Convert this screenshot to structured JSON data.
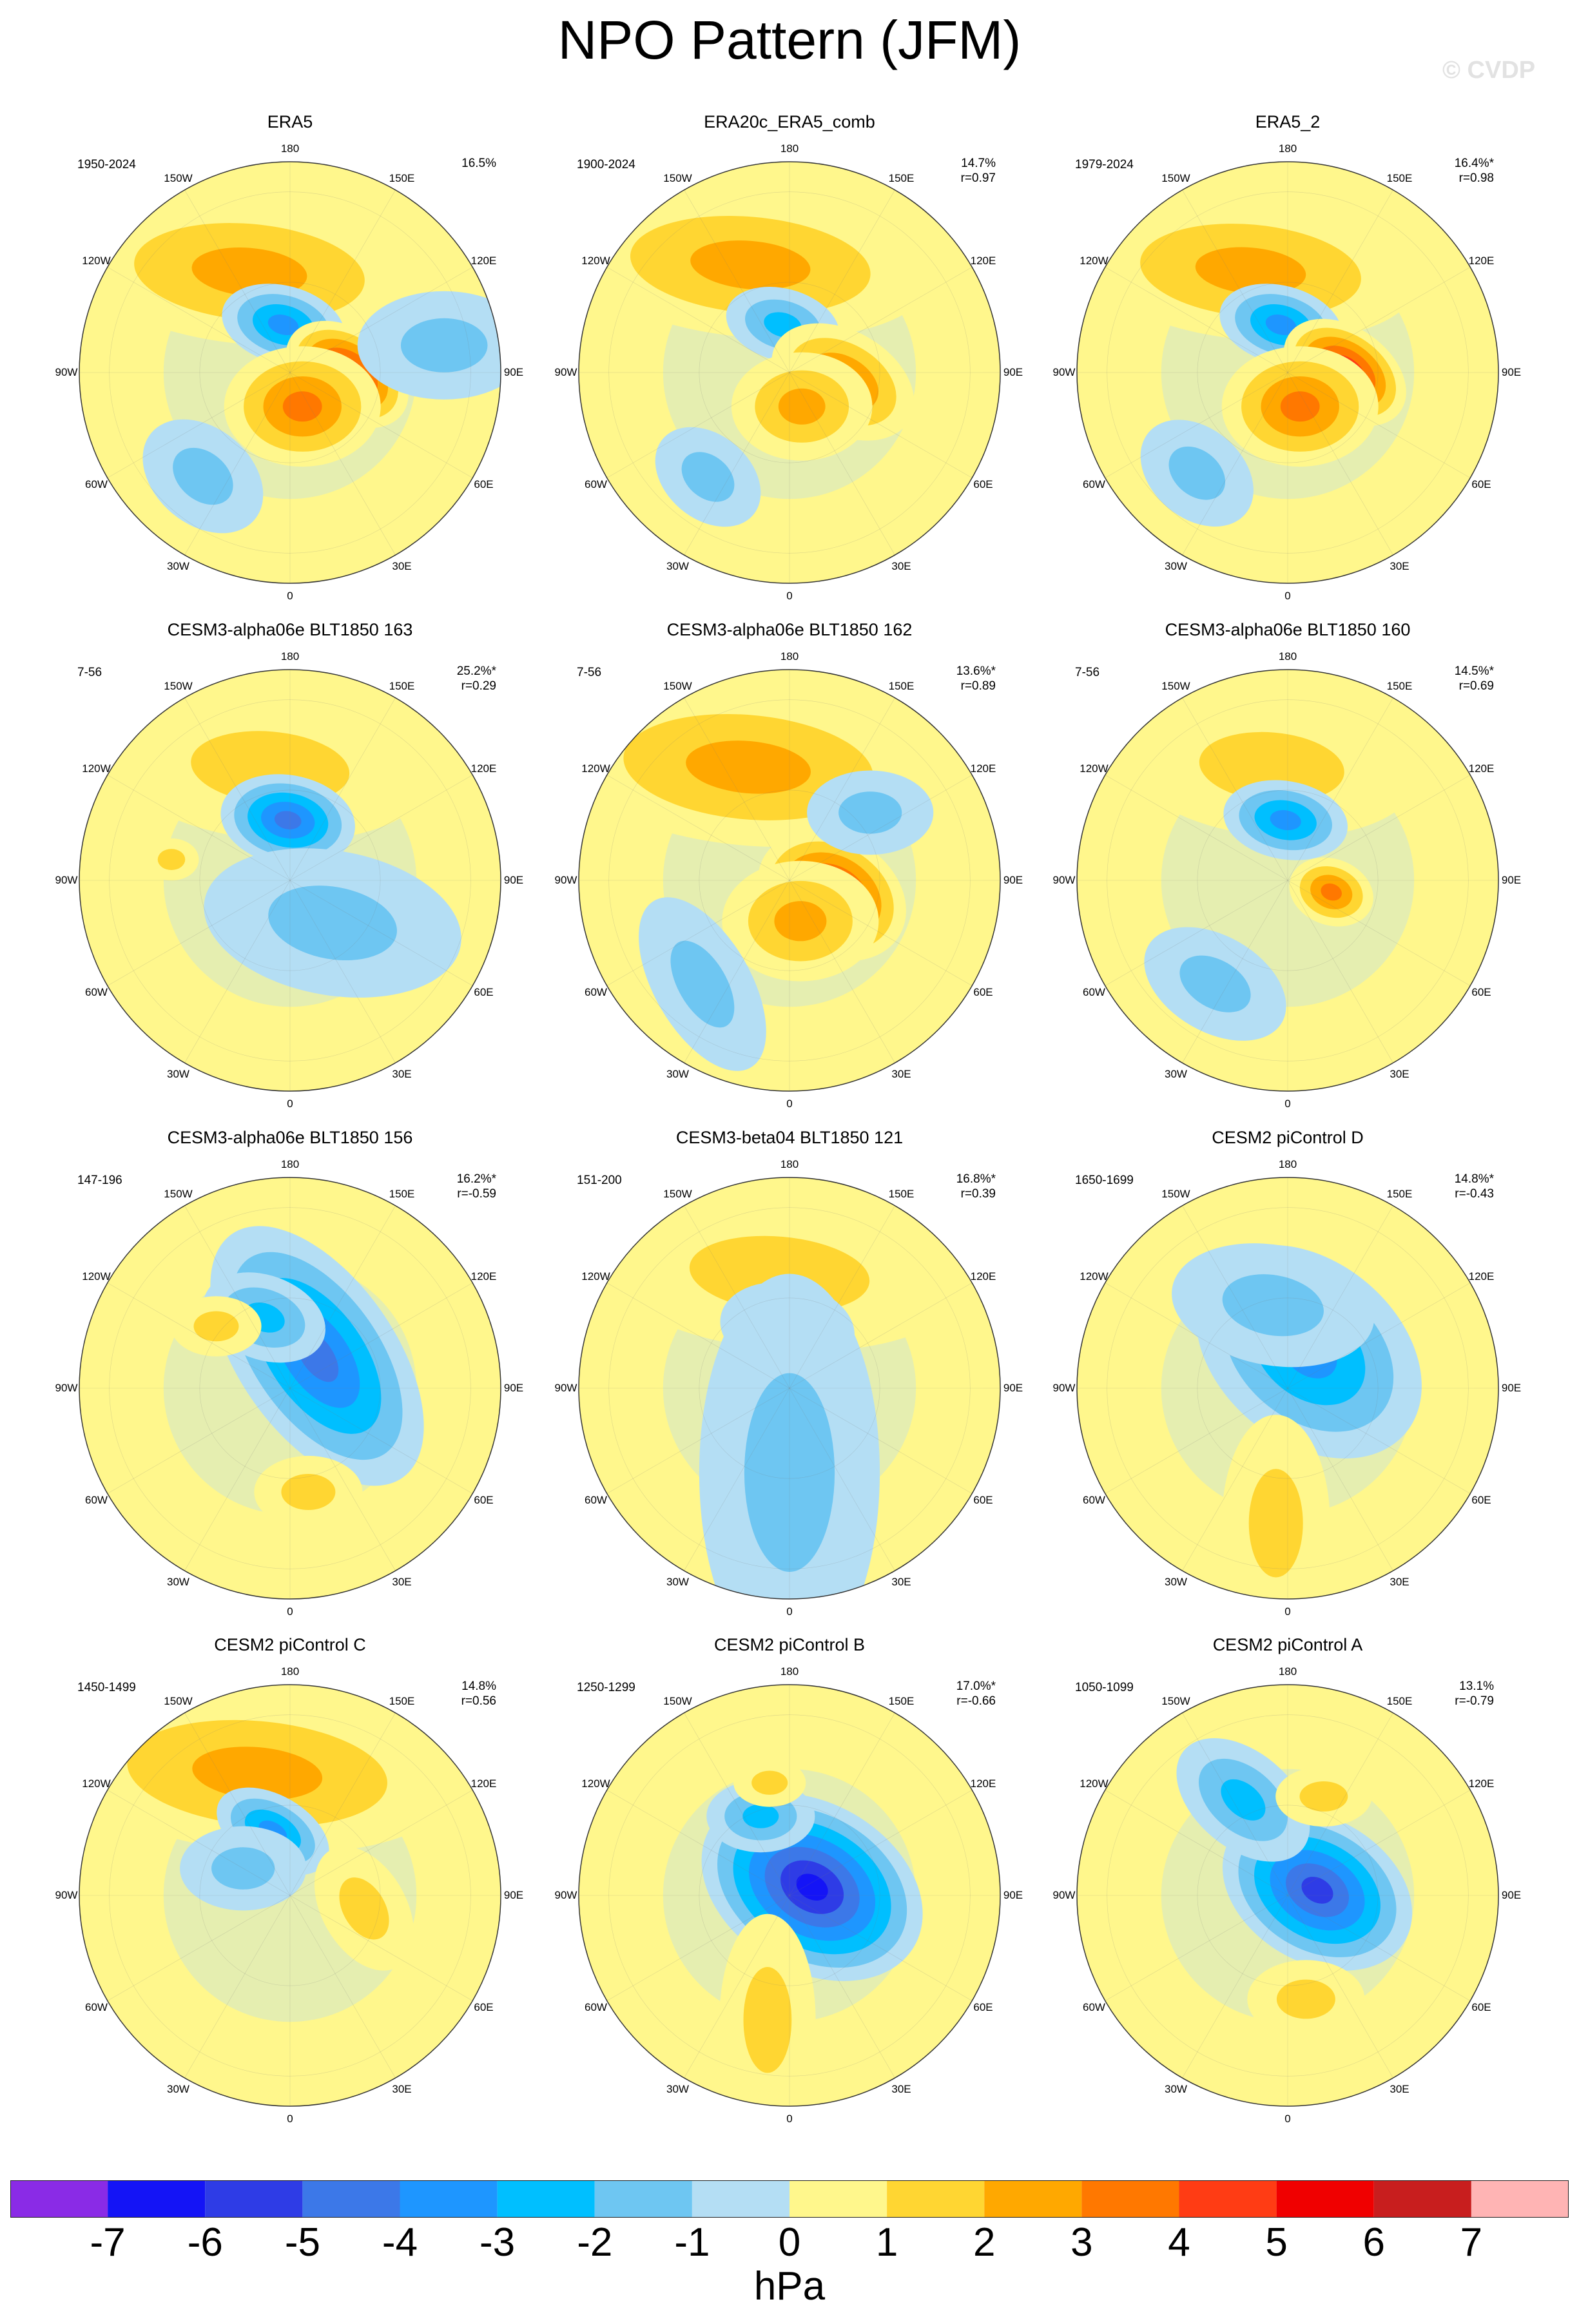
{
  "title": "NPO Pattern (JFM)",
  "watermark": "© CVDP",
  "longitude_labels": [
    "180",
    "150E",
    "120E",
    "90E",
    "60E",
    "30E",
    "0",
    "30W",
    "60W",
    "90W",
    "120W",
    "150W"
  ],
  "panels": [
    {
      "title": "ERA5",
      "years": "1950-2024",
      "pct": "16.5%",
      "r": "",
      "features": [
        {
          "lat": 54,
          "lon": -158,
          "val": 2.5,
          "rad": 24,
          "ax": 2.4,
          "ang": 5
        },
        {
          "lat": 74,
          "lon": -172,
          "val": -3.4,
          "rad": 13,
          "ax": 1.6,
          "ang": 15
        },
        {
          "lat": 71,
          "lon": 88,
          "val": 5.2,
          "rad": 15,
          "ax": 1.5,
          "ang": 35
        },
        {
          "lat": 78,
          "lon": 20,
          "val": 3.5,
          "rad": 20,
          "ax": 1.3,
          "ang": 0
        },
        {
          "lat": 45,
          "lon": -40,
          "val": -2.0,
          "rad": 16,
          "ax": 1.4,
          "ang": 40
        },
        {
          "lat": 38,
          "lon": 100,
          "val": -1.2,
          "rad": 18,
          "ax": 1.6,
          "ang": 0
        }
      ]
    },
    {
      "title": "ERA20c_ERA5_comb",
      "years": "1900-2024",
      "pct": "14.7%",
      "r": "r=0.97",
      "features": [
        {
          "lat": 52,
          "lon": -160,
          "val": 2.4,
          "rad": 24,
          "ax": 2.5,
          "ang": 5
        },
        {
          "lat": 74,
          "lon": -172,
          "val": -2.9,
          "rad": 12,
          "ax": 1.6,
          "ang": 15
        },
        {
          "lat": 72,
          "lon": 80,
          "val": 3.3,
          "rad": 17,
          "ax": 1.5,
          "ang": 30
        },
        {
          "lat": 78,
          "lon": 20,
          "val": 2.4,
          "rad": 18,
          "ax": 1.3,
          "ang": 0
        },
        {
          "lat": 46,
          "lon": -38,
          "val": -1.8,
          "rad": 14,
          "ax": 1.4,
          "ang": 40
        }
      ]
    },
    {
      "title": "ERA5_2",
      "years": "1979-2024",
      "pct": "16.4%*",
      "r": "r=0.98",
      "features": [
        {
          "lat": 54,
          "lon": -160,
          "val": 2.4,
          "rad": 23,
          "ax": 2.4,
          "ang": 5
        },
        {
          "lat": 74,
          "lon": -172,
          "val": -3.4,
          "rad": 13,
          "ax": 1.6,
          "ang": 15
        },
        {
          "lat": 71,
          "lon": 90,
          "val": 5.5,
          "rad": 15,
          "ax": 1.5,
          "ang": 35
        },
        {
          "lat": 78,
          "lon": 20,
          "val": 3.2,
          "rad": 20,
          "ax": 1.3,
          "ang": 0
        },
        {
          "lat": 45,
          "lon": -42,
          "val": -2.0,
          "rad": 15,
          "ax": 1.4,
          "ang": 40
        }
      ]
    },
    {
      "title": "CESM3-alpha06e BLT1850 163",
      "years": "7-56",
      "pct": "25.2%*",
      "r": "r=0.29",
      "features": [
        {
          "lat": 52,
          "lon": -170,
          "val": 1.9,
          "rad": 24,
          "ax": 2.2,
          "ang": 5
        },
        {
          "lat": 70,
          "lon": -178,
          "val": -5.0,
          "rad": 15,
          "ax": 1.5,
          "ang": 10
        },
        {
          "lat": 70,
          "lon": 45,
          "val": -1.4,
          "rad": 24,
          "ax": 1.8,
          "ang": 10
        },
        {
          "lat": 50,
          "lon": -100,
          "val": 1.2,
          "rad": 7,
          "ax": 1.3,
          "ang": 0
        }
      ]
    },
    {
      "title": "CESM3-alpha06e BLT1850 162",
      "years": "7-56",
      "pct": "13.6%*",
      "r": "r=0.89",
      "features": [
        {
          "lat": 50,
          "lon": -160,
          "val": 2.4,
          "rad": 26,
          "ax": 2.4,
          "ang": 5
        },
        {
          "lat": 75,
          "lon": 70,
          "val": 6.0,
          "rad": 20,
          "ax": 1.3,
          "ang": 30
        },
        {
          "lat": 76,
          "lon": 15,
          "val": 3.0,
          "rad": 20,
          "ax": 1.3,
          "ang": 0
        },
        {
          "lat": 45,
          "lon": -40,
          "val": -1.6,
          "rad": 16,
          "ax": 2.0,
          "ang": 60
        },
        {
          "lat": 55,
          "lon": 130,
          "val": -1.1,
          "rad": 14,
          "ax": 1.5,
          "ang": 0
        }
      ]
    },
    {
      "title": "CESM3-alpha06e BLT1850 160",
      "years": "7-56",
      "pct": "14.5%*",
      "r": "r=0.69",
      "features": [
        {
          "lat": 52,
          "lon": -172,
          "val": 1.7,
          "rad": 23,
          "ax": 2.1,
          "ang": 5
        },
        {
          "lat": 70,
          "lon": -178,
          "val": -3.2,
          "rad": 13,
          "ax": 1.6,
          "ang": 10
        },
        {
          "lat": 75,
          "lon": 75,
          "val": 3.2,
          "rad": 11,
          "ax": 1.3,
          "ang": 20
        },
        {
          "lat": 48,
          "lon": -35,
          "val": -1.2,
          "rad": 16,
          "ax": 1.6,
          "ang": 30
        }
      ]
    },
    {
      "title": "CESM3-alpha06e BLT1850 156",
      "years": "147-196",
      "pct": "16.2%*",
      "r": "r=-0.59",
      "features": [
        {
          "lat": 76,
          "lon": 140,
          "val": -4.2,
          "rad": 26,
          "ax": 1.9,
          "ang": 55
        },
        {
          "lat": 65,
          "lon": -160,
          "val": -2.6,
          "rad": 14,
          "ax": 1.5,
          "ang": 20
        },
        {
          "lat": 58,
          "lon": -130,
          "val": 1.5,
          "rad": 10,
          "ax": 1.5,
          "ang": 0
        },
        {
          "lat": 55,
          "lon": 10,
          "val": 1.6,
          "rad": 12,
          "ax": 1.5,
          "ang": 0
        }
      ]
    },
    {
      "title": "CESM3-beta04 BLT1850 121",
      "years": "151-200",
      "pct": "16.8%*",
      "r": "r=0.39",
      "features": [
        {
          "lat": 52,
          "lon": -175,
          "val": 1.8,
          "rad": 25,
          "ax": 2.4,
          "ang": 5
        },
        {
          "lat": 70,
          "lon": -178,
          "val": -3.4,
          "rad": 15,
          "ax": 1.5,
          "ang": 10
        },
        {
          "lat": 74,
          "lon": 85,
          "val": 1.6,
          "rad": 8,
          "ax": 1.3,
          "ang": 0
        },
        {
          "lat": 62,
          "lon": 0,
          "val": -1.6,
          "rad": 30,
          "ax": 2.2,
          "ang": 90
        }
      ]
    },
    {
      "title": "CESM2 piControl D",
      "years": "1650-1699",
      "pct": "14.8%*",
      "r": "r=-0.43",
      "features": [
        {
          "lat": 76,
          "lon": 150,
          "val": -3.4,
          "rad": 30,
          "ax": 1.4,
          "ang": 40
        },
        {
          "lat": 62,
          "lon": -170,
          "val": -2.0,
          "rad": 20,
          "ax": 1.7,
          "ang": 10
        },
        {
          "lat": 45,
          "lon": -5,
          "val": 1.4,
          "rad": 18,
          "ax": 2.0,
          "ang": 90
        }
      ]
    },
    {
      "title": "CESM2 piControl C",
      "years": "1450-1499",
      "pct": "14.8%",
      "r": "r=0.56",
      "features": [
        {
          "lat": 48,
          "lon": -165,
          "val": 2.4,
          "rad": 26,
          "ax": 2.5,
          "ang": 5
        },
        {
          "lat": 68,
          "lon": -165,
          "val": -3.6,
          "rad": 12,
          "ax": 1.7,
          "ang": 30
        },
        {
          "lat": 72,
          "lon": -120,
          "val": -1.8,
          "rad": 14,
          "ax": 1.5,
          "ang": 0
        },
        {
          "lat": 65,
          "lon": 80,
          "val": 1.4,
          "rad": 14,
          "ax": 1.6,
          "ang": 60
        }
      ]
    },
    {
      "title": "CESM2 piControl B",
      "years": "1250-1299",
      "pct": "17.0%*",
      "r": "r=-0.66",
      "features": [
        {
          "lat": 82,
          "lon": 110,
          "val": -6.2,
          "rad": 28,
          "ax": 1.4,
          "ang": 30
        },
        {
          "lat": 62,
          "lon": -160,
          "val": -3.0,
          "rad": 12,
          "ax": 1.5,
          "ang": 0
        },
        {
          "lat": 48,
          "lon": -10,
          "val": 1.4,
          "rad": 16,
          "ax": 2.2,
          "ang": 90
        },
        {
          "lat": 52,
          "lon": -170,
          "val": 1.2,
          "rad": 8,
          "ax": 1.5,
          "ang": 0
        }
      ]
    },
    {
      "title": "CESM2 piControl A",
      "years": "1050-1099",
      "pct": "13.1%",
      "r": "r=-0.79",
      "features": [
        {
          "lat": 80,
          "lon": 100,
          "val": -5.2,
          "rad": 24,
          "ax": 1.4,
          "ang": 30
        },
        {
          "lat": 55,
          "lon": -155,
          "val": -2.6,
          "rad": 16,
          "ax": 1.6,
          "ang": 40
        },
        {
          "lat": 55,
          "lon": 160,
          "val": 1.6,
          "rad": 10,
          "ax": 1.6,
          "ang": 0
        },
        {
          "lat": 55,
          "lon": 10,
          "val": 1.6,
          "rad": 13,
          "ax": 1.5,
          "ang": 0
        }
      ]
    }
  ],
  "colorbar": {
    "colors": [
      "#8a2be6",
      "#1414f6",
      "#2e3ce6",
      "#3c78e8",
      "#1e96ff",
      "#00bfff",
      "#6ec6f2",
      "#b4def4",
      "#fff78c",
      "#ffd632",
      "#ffa800",
      "#ff7800",
      "#ff3c14",
      "#f00000",
      "#c81e1e",
      "#ffb4b4"
    ],
    "tick_labels": [
      "-7",
      "-6",
      "-5",
      "-4",
      "-3",
      "-2",
      "-1",
      "0",
      "1",
      "2",
      "3",
      "4",
      "5",
      "6",
      "7"
    ],
    "units": "hPa"
  }
}
